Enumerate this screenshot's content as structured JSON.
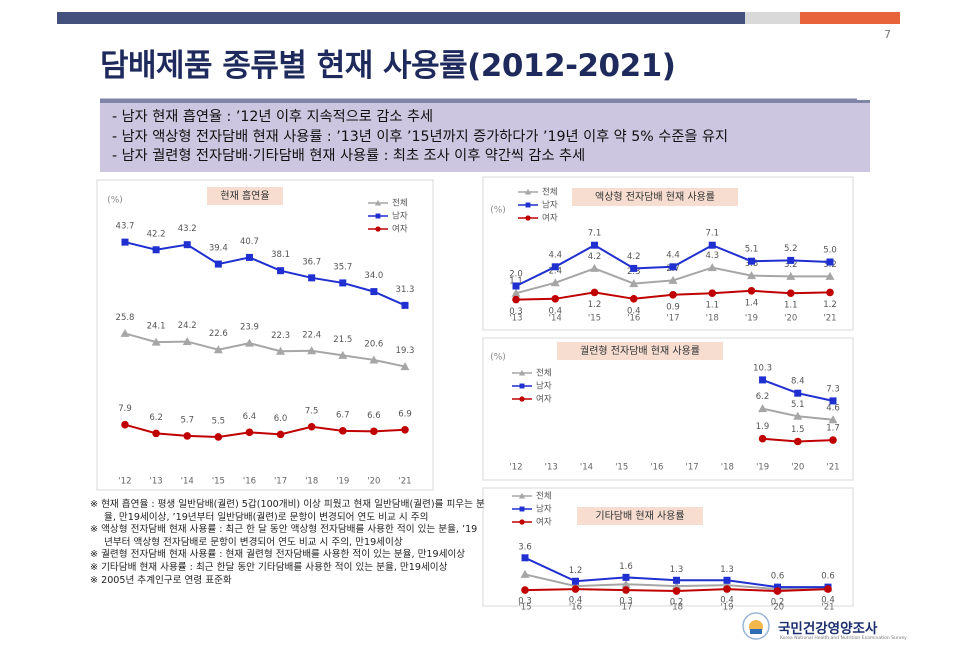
{
  "page": {
    "number": "7",
    "title": "담배제품 종류별 현재 사용률(2012-2021)",
    "bullets": [
      "- 남자 현재 흡연율 : ’12년 이후 지속적으로 감소 추세",
      "- 남자 액상형 전자담배 현재 사용률 : ’13년 이후 ’15년까지 증가하다가 ’19년 이후 약 5% 수준을 유지",
      "- 남자 궐련형 전자담배·기타담배 현재 사용률 : 최초 조사 이후 약간씩 감소 추세"
    ],
    "notes": [
      "※ 현재 흡연율 : 평생 일반담배(궐련) 5갑(100개비) 이상 피웠고 현재 일반담배(궐련)를 피우는 분율, 만19세이상, ’19년부터 일반담배(궐련)로 문항이 변경되어 연도 비교 시 주의",
      "※ 액상형 전자담배 현재 사용률 : 최근 한 달 동안 액상형 전자담배를 사용한 적이 있는 분율, ’19년부터 액상형 전자담배로 문항이 변경되어 연도 비교 시 주의, 만19세이상",
      "※ 궐련형 전자담배 현재 사용률 : 현재 궐련형 전자담배를 사용한 적이 있는 분율, 만19세이상",
      "※ 기타담배 현재 사용률 : 최근 한달 동안 기타담배를 사용한 적이 있는 분율, 만19세이상",
      "※ 2005년 추계인구로 연령 표준화"
    ],
    "logo": "국민건강영양조사",
    "logo_sub": "Korea National Health and Nutrition Examination Survey"
  },
  "chart_data": [
    {
      "type": "line",
      "title": "현재 흡연율",
      "y_label": "(%)",
      "legend": "upper right",
      "categories": [
        "'12",
        "'13",
        "'14",
        "'15",
        "'16",
        "'17",
        "'18",
        "'19",
        "'20",
        "'21"
      ],
      "ylim": [
        0,
        50
      ],
      "series": [
        {
          "name": "전체",
          "color": "#a6a6a6",
          "values": [
            25.8,
            24.1,
            24.2,
            22.6,
            23.9,
            22.3,
            22.4,
            21.5,
            20.6,
            19.3
          ],
          "value_labels": [
            "25.8",
            "24.1",
            "24.2",
            "22.6",
            "23.9",
            "22.3",
            "22.4",
            "21.5",
            "20.6",
            "19.3"
          ]
        },
        {
          "name": "남자",
          "color": "#1f2fd0",
          "values": [
            43.7,
            42.2,
            43.2,
            39.4,
            40.7,
            38.1,
            36.7,
            35.7,
            34.0,
            31.3
          ],
          "value_labels": [
            "43.7",
            "42.2",
            "43.2",
            "39.4",
            "40.7",
            "38.1",
            "36.7",
            "35.7",
            "34.0",
            "31.3"
          ]
        },
        {
          "name": "여자",
          "color": "#c00000",
          "values": [
            7.9,
            6.2,
            5.7,
            5.5,
            6.4,
            6.0,
            7.5,
            6.7,
            6.6,
            6.9
          ],
          "value_labels": [
            "7.9",
            "6.2",
            "5.7",
            "5.5",
            "6.4",
            "6.0",
            "7.5",
            "6.7",
            "6.6",
            "6.9"
          ]
        }
      ]
    },
    {
      "type": "line",
      "title": "액상형 전자담배 현재 사용률",
      "y_label": "(%)",
      "legend": "upper left",
      "categories": [
        "'13",
        "'14",
        "'15",
        "'16",
        "'17",
        "'18",
        "'19",
        "'20",
        "'21"
      ],
      "ylim": [
        0,
        8
      ],
      "series": [
        {
          "name": "전체",
          "color": "#a6a6a6",
          "values": [
            1.1,
            2.4,
            4.2,
            2.3,
            2.7,
            4.3,
            3.3,
            3.2,
            3.2
          ],
          "value_labels": [
            "1.1",
            "2.4",
            "4.2",
            "2.3",
            "2.7",
            "4.3",
            "3.3",
            "3.2",
            "3.2"
          ]
        },
        {
          "name": "남자",
          "color": "#1f2fd0",
          "values": [
            2.0,
            4.4,
            7.1,
            4.2,
            4.4,
            7.1,
            5.1,
            5.2,
            5.0
          ],
          "value_labels": [
            "2.0",
            "4.4",
            "7.1",
            "4.2",
            "4.4",
            "7.1",
            "5.1",
            "5.2",
            "5.0"
          ]
        },
        {
          "name": "여자",
          "color": "#c00000",
          "values": [
            0.3,
            0.4,
            1.2,
            0.4,
            0.9,
            1.1,
            1.4,
            1.1,
            1.2
          ],
          "value_labels": [
            "0.3",
            "0.4",
            "1.2",
            "0.4",
            "0.9",
            "1.1",
            "1.4",
            "1.1",
            "1.2"
          ]
        }
      ]
    },
    {
      "type": "line",
      "title": "궐련형 전자담배 현재 사용률",
      "y_label": "(%)",
      "legend": "upper left",
      "categories": [
        "'12",
        "'13",
        "'14",
        "'15",
        "'16",
        "'17",
        "'18",
        "'19",
        "'20",
        "'21"
      ],
      "ylim": [
        0,
        12
      ],
      "series": [
        {
          "name": "전체",
          "color": "#a6a6a6",
          "values": [
            null,
            null,
            null,
            null,
            null,
            null,
            null,
            6.2,
            5.1,
            4.6
          ],
          "value_labels": [
            null,
            null,
            null,
            null,
            null,
            null,
            null,
            "6.2",
            "5.1",
            "4.6"
          ]
        },
        {
          "name": "남자",
          "color": "#1f2fd0",
          "values": [
            null,
            null,
            null,
            null,
            null,
            null,
            null,
            10.3,
            8.4,
            7.3
          ],
          "value_labels": [
            null,
            null,
            null,
            null,
            null,
            null,
            null,
            "10.3",
            "8.4",
            "7.3"
          ]
        },
        {
          "name": "여자",
          "color": "#c00000",
          "values": [
            null,
            null,
            null,
            null,
            null,
            null,
            null,
            1.9,
            1.5,
            1.7
          ],
          "value_labels": [
            null,
            null,
            null,
            null,
            null,
            null,
            null,
            "1.9",
            "1.5",
            "1.7"
          ]
        }
      ]
    },
    {
      "type": "line",
      "title": "기타담배 현재 사용률",
      "y_label": null,
      "legend": "upper left",
      "categories": [
        "'15",
        "'16",
        "'17",
        "'18",
        "'19",
        "'20",
        "'21"
      ],
      "ylim": [
        0,
        4.5
      ],
      "series": [
        {
          "name": "전체",
          "color": "#a6a6a6",
          "values": [
            1.9,
            0.7,
            0.9,
            0.7,
            0.8,
            0.4,
            0.5
          ]
        },
        {
          "name": "남자",
          "color": "#1f2fd0",
          "values": [
            3.6,
            1.2,
            1.6,
            1.3,
            1.3,
            0.6,
            0.6
          ],
          "value_labels": [
            "3.6",
            "1.2",
            "1.6",
            "1.3",
            "1.3",
            "0.6",
            "0.6"
          ]
        },
        {
          "name": "여자",
          "color": "#c00000",
          "values": [
            0.3,
            0.4,
            0.3,
            0.2,
            0.4,
            0.2,
            0.4
          ],
          "value_labels": [
            "0.3",
            "0.4",
            "0.3",
            "0.2",
            "0.4",
            "0.2",
            "0.4"
          ]
        }
      ]
    }
  ]
}
